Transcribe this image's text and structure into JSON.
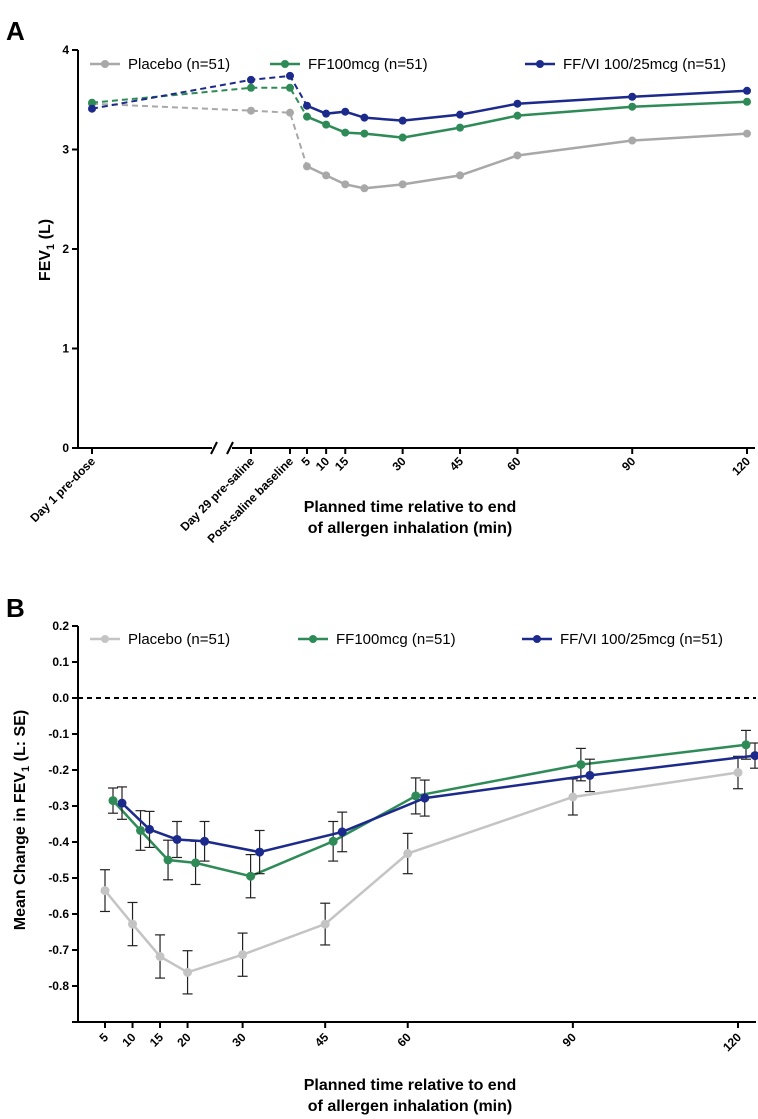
{
  "chart_data": [
    {
      "panel": "A",
      "type": "line",
      "ylabel_main": "FEV",
      "ylabel_sub": "1",
      "ylabel_unit": " (L)",
      "xlabel": [
        "Planned time relative to end",
        "of allergen inhalation (min)"
      ],
      "ylim": [
        0,
        4
      ],
      "yticks": [
        "0",
        "1",
        "2",
        "3",
        "4"
      ],
      "x_tick_labels": [
        "Day 1 pre-dose",
        "Day 29 pre-saline",
        "Post-saline baseline",
        "5",
        "10",
        "15",
        "30",
        "45",
        "60",
        "90",
        "120"
      ],
      "colors": {
        "placebo": "#a8a8a8",
        "ff": "#2e8b57",
        "ffvi": "#1c2a8c"
      },
      "series": [
        {
          "name": "Placebo (n=51)",
          "key": "placebo",
          "baseline": [
            3.46,
            3.39,
            3.37
          ],
          "minutes": [
            5,
            10,
            15,
            20,
            30,
            45,
            60,
            90,
            120
          ],
          "values": [
            2.83,
            2.74,
            2.65,
            2.61,
            2.65,
            2.74,
            2.94,
            3.09,
            3.16
          ]
        },
        {
          "name": "FF100mcg (n=51)",
          "key": "ff",
          "baseline": [
            3.47,
            3.62,
            3.62
          ],
          "minutes": [
            5,
            10,
            15,
            20,
            30,
            45,
            60,
            90,
            120
          ],
          "values": [
            3.33,
            3.25,
            3.17,
            3.16,
            3.12,
            3.22,
            3.34,
            3.43,
            3.48
          ]
        },
        {
          "name": "FF/VI 100/25mcg (n=51)",
          "key": "ffvi",
          "baseline": [
            3.41,
            3.7,
            3.74
          ],
          "minutes": [
            5,
            10,
            15,
            20,
            30,
            45,
            60,
            90,
            120
          ],
          "values": [
            3.44,
            3.36,
            3.38,
            3.32,
            3.29,
            3.35,
            3.46,
            3.53,
            3.59
          ]
        }
      ]
    },
    {
      "panel": "B",
      "type": "line",
      "ylabel_main": "Mean Change in FEV",
      "ylabel_sub": "1",
      "ylabel_unit": " (L: SE)",
      "xlabel": [
        "Planned time relative to end",
        "of allergen inhalation (min)"
      ],
      "ylim": [
        -0.9,
        0.2
      ],
      "yticks": [
        "0.2",
        "0.1",
        "0.0",
        "-0.1",
        "-0.2",
        "-0.3",
        "-0.4",
        "-0.5",
        "-0.6",
        "-0.7",
        "-0.8"
      ],
      "x_tick_labels": [
        "5",
        "10",
        "15",
        "20",
        "30",
        "45",
        "60",
        "90",
        "120"
      ],
      "reference_line": 0.0,
      "colors": {
        "placebo": "#c4c4c4",
        "ff": "#2e8b57",
        "ffvi": "#1c2a8c"
      },
      "series": [
        {
          "name": "Placebo (n=51)",
          "key": "placebo",
          "minutes": [
            5,
            10,
            15,
            20,
            30,
            45,
            60,
            90,
            120
          ],
          "values": [
            -0.535,
            -0.628,
            -0.718,
            -0.762,
            -0.713,
            -0.628,
            -0.432,
            -0.275,
            -0.207
          ],
          "se": [
            0.058,
            0.06,
            0.06,
            0.06,
            0.06,
            0.058,
            0.056,
            0.05,
            0.045
          ]
        },
        {
          "name": "FF100mcg (n=51)",
          "key": "ff",
          "minutes": [
            5,
            10,
            15,
            20,
            30,
            45,
            60,
            90,
            120
          ],
          "values": [
            -0.285,
            -0.368,
            -0.45,
            -0.458,
            -0.495,
            -0.398,
            -0.272,
            -0.185,
            -0.13
          ],
          "se": [
            0.035,
            0.055,
            0.055,
            0.06,
            0.06,
            0.055,
            0.05,
            0.045,
            0.04
          ]
        },
        {
          "name": "FF/VI 100/25mcg (n=51)",
          "key": "ffvi",
          "minutes": [
            5,
            10,
            15,
            20,
            30,
            45,
            60,
            90,
            120
          ],
          "values": [
            -0.292,
            -0.365,
            -0.393,
            -0.398,
            -0.428,
            -0.372,
            -0.278,
            -0.215,
            -0.16
          ],
          "se": [
            0.045,
            0.05,
            0.05,
            0.055,
            0.06,
            0.055,
            0.05,
            0.045,
            0.035
          ]
        }
      ]
    }
  ]
}
